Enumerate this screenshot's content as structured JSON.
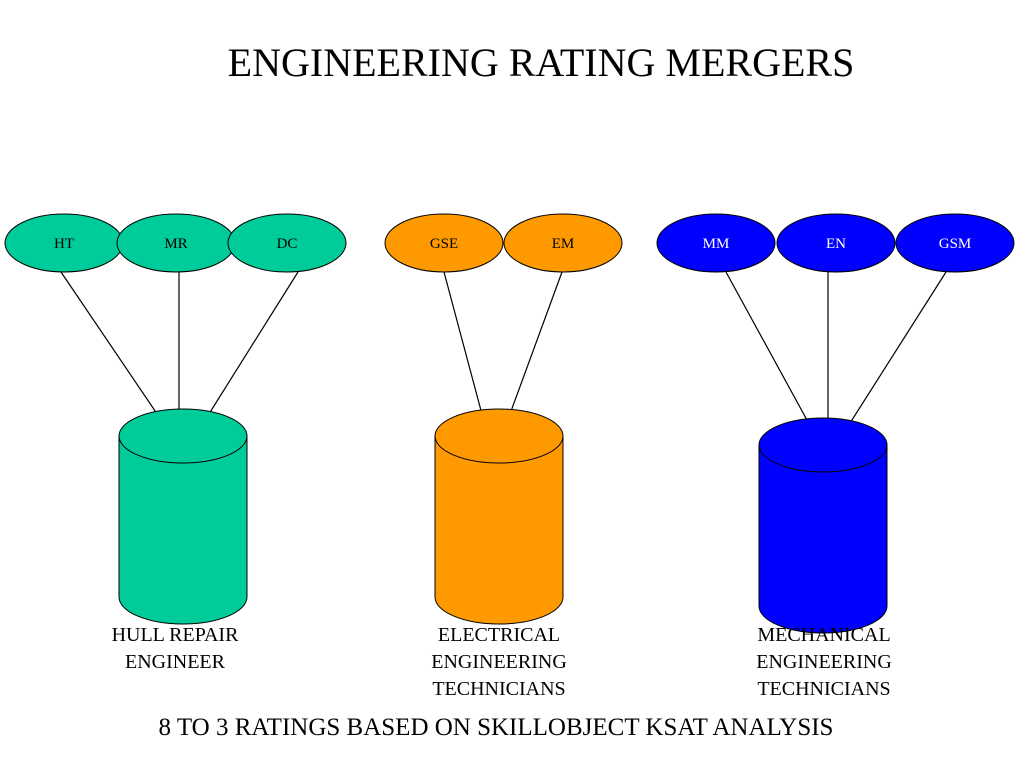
{
  "title": "ENGINEERING RATING MERGERS",
  "footer": "8 TO 3 RATINGS BASED ON SKILLOBJECT KSAT ANALYSIS",
  "groups": [
    {
      "color": "#00CC99",
      "text_color": "#000000",
      "ratings": [
        "HT",
        "MR",
        "DC"
      ],
      "target_lines": [
        "HULL REPAIR",
        "ENGINEER"
      ]
    },
    {
      "color": "#FF9900",
      "text_color": "#000000",
      "ratings": [
        "GSE",
        "EM"
      ],
      "target_lines": [
        "ELECTRICAL",
        "ENGINEERING",
        "TECHNICIANS"
      ]
    },
    {
      "color": "#0000FF",
      "text_color": "#FFFFFF",
      "ratings": [
        "MM",
        "EN",
        "GSM"
      ],
      "target_lines": [
        "MECHANICAL",
        "ENGINEERING",
        "TECHNICIANS"
      ]
    }
  ]
}
